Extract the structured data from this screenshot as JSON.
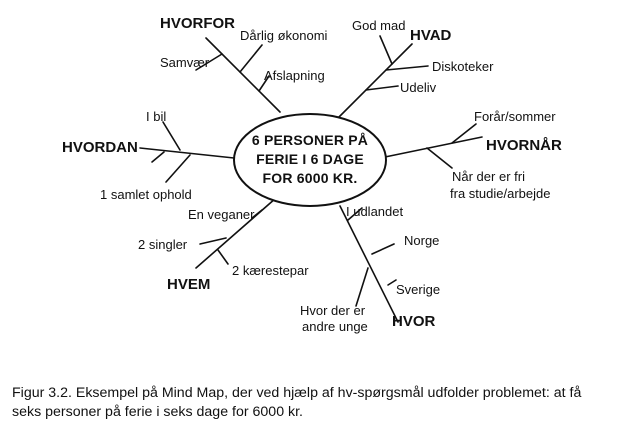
{
  "center": {
    "lines": [
      "6 PERSONER PÅ",
      "FERIE I 6 DAGE",
      "FOR 6000 KR."
    ]
  },
  "groups": {
    "hvorfor": {
      "heading": "HVORFOR",
      "items": [
        "Dårlig økonomi",
        "Samvær",
        "Afslapning"
      ]
    },
    "hvad": {
      "heading": "HVAD",
      "items": [
        "God mad",
        "Diskoteker",
        "Udeliv"
      ]
    },
    "hvornaar": {
      "heading": "HVORNÅR",
      "items": [
        "Forår/sommer",
        "Når der er fri",
        "fra studie/arbejde"
      ]
    },
    "hvor": {
      "heading": "HVOR",
      "items": [
        "I udlandet",
        "Norge",
        "Sverige",
        "Hvor der er",
        "andre unge"
      ]
    },
    "hvem": {
      "heading": "HVEM",
      "items": [
        "En veganer",
        "2 singler",
        "2 kærestepar"
      ]
    },
    "hvordan": {
      "heading": "HVORDAN",
      "items": [
        "I bil",
        "1 samlet ophold"
      ]
    }
  },
  "caption": "Figur 3.2. Eksempel på Mind Map, der ved hjælp af hv-spørgsmål udfolder problemet: at få seks personer på ferie i seks dage for 6000 kr."
}
